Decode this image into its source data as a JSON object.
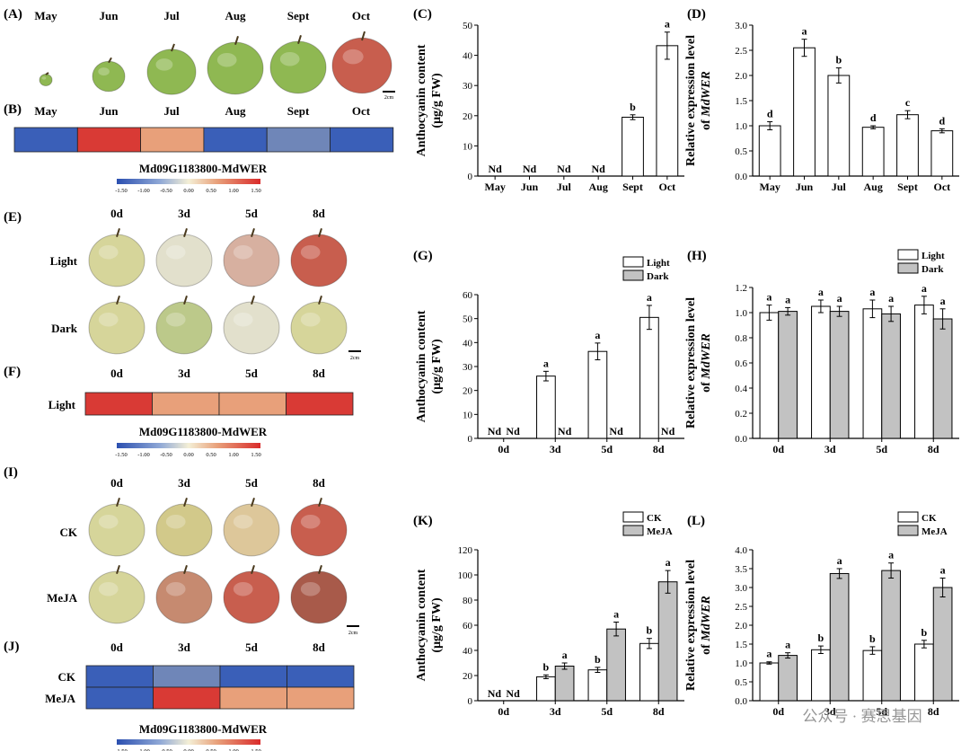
{
  "colors": {
    "heat_low": "#3a5fb8",
    "heat_low2": "#6f86b8",
    "heat_high2": "#e8a07a",
    "heat_high": "#d93a35",
    "bar_white": "#ffffff",
    "bar_gray": "#c2c2c2",
    "apple_green": "#8fb852",
    "apple_yellow": "#d6d59a",
    "apple_red": "#c85e4e",
    "apple_pale": "#e2e0cc"
  },
  "panel_labels": {
    "A": "(A)",
    "B": "(B)",
    "C": "(C)",
    "D": "(D)",
    "E": "(E)",
    "F": "(F)",
    "G": "(G)",
    "H": "(H)",
    "I": "(I)",
    "J": "(J)",
    "K": "(K)",
    "L": "(L)"
  },
  "panel_A": {
    "months": [
      "May",
      "Jun",
      "Jul",
      "Aug",
      "Sept",
      "Oct"
    ],
    "scale": "2cm"
  },
  "panel_B": {
    "months": [
      "May",
      "Jun",
      "Jul",
      "Aug",
      "Sept",
      "Oct"
    ],
    "cells": [
      "low",
      "high",
      "high2",
      "low",
      "low2",
      "low"
    ],
    "gene": "Md09G1183800-MdWER",
    "scale_ticks": [
      "-1.50",
      "-1.00",
      "-0.50",
      "0.00",
      "0.50",
      "1.00",
      "1.50"
    ]
  },
  "panel_E": {
    "days": [
      "0d",
      "3d",
      "5d",
      "8d"
    ],
    "rows": [
      "Light",
      "Dark"
    ],
    "scale": "2cm"
  },
  "panel_F": {
    "days": [
      "0d",
      "3d",
      "5d",
      "8d"
    ],
    "row": "Light",
    "cells": [
      "high",
      "high2",
      "high2",
      "high"
    ],
    "gene": "Md09G1183800-MdWER",
    "scale_ticks": [
      "-1.50",
      "-1.00",
      "-0.50",
      "0.00",
      "0.50",
      "1.00",
      "1.50"
    ]
  },
  "panel_I": {
    "days": [
      "0d",
      "3d",
      "5d",
      "8d"
    ],
    "rows": [
      "CK",
      "MeJA"
    ],
    "scale": "2cm"
  },
  "panel_J": {
    "days": [
      "0d",
      "3d",
      "5d",
      "8d"
    ],
    "rows": [
      "CK",
      "MeJA"
    ],
    "cells": [
      [
        "low",
        "low2",
        "low",
        "low"
      ],
      [
        "low",
        "high",
        "high2",
        "high2"
      ]
    ],
    "gene": "Md09G1183800-MdWER",
    "scale_ticks": [
      "-1.50",
      "-1.00",
      "-0.50",
      "0.00",
      "0.50",
      "1.00",
      "1.50"
    ]
  },
  "watermark": "公众号 · 赛思基因",
  "chart_data": [
    {
      "id": "C",
      "type": "bar",
      "categories": [
        "May",
        "Jun",
        "Jul",
        "Aug",
        "Sept",
        "Oct"
      ],
      "series": [
        {
          "values": [
            0,
            0,
            0,
            0,
            19.5,
            43.2
          ],
          "errors": [
            0,
            0,
            0,
            0,
            0.8,
            4.5
          ],
          "labels": [
            "Nd",
            "Nd",
            "Nd",
            "Nd",
            "b",
            "a"
          ]
        }
      ],
      "ylabel": [
        "Anthocyanin content",
        "(μg/g FW)"
      ],
      "ylim": [
        0,
        50
      ],
      "yticks": [
        0,
        10,
        20,
        30,
        40,
        50
      ],
      "legend": []
    },
    {
      "id": "D",
      "type": "bar",
      "categories": [
        "May",
        "Jun",
        "Jul",
        "Aug",
        "Sept",
        "Oct"
      ],
      "series": [
        {
          "values": [
            1.0,
            2.55,
            2.0,
            0.97,
            1.22,
            0.9
          ],
          "errors": [
            0.08,
            0.17,
            0.15,
            0.03,
            0.08,
            0.04
          ],
          "labels": [
            "d",
            "a",
            "b",
            "d",
            "c",
            "d"
          ]
        }
      ],
      "ylabel": [
        "Relative expression level",
        "of MdWER"
      ],
      "ylim": [
        0,
        3.0
      ],
      "yticks": [
        0,
        0.5,
        1.0,
        1.5,
        2.0,
        2.5,
        3.0
      ],
      "legend": []
    },
    {
      "id": "G",
      "type": "bar",
      "categories": [
        "0d",
        "3d",
        "5d",
        "8d"
      ],
      "series": [
        {
          "name": "Light",
          "values": [
            0,
            26,
            36.3,
            50.5
          ],
          "errors": [
            0,
            2,
            3.5,
            5
          ],
          "labels": [
            "Nd",
            "a",
            "a",
            "a"
          ]
        },
        {
          "name": "Dark",
          "values": [
            0,
            0,
            0,
            0
          ],
          "errors": [
            0,
            0,
            0,
            0
          ],
          "labels": [
            "Nd",
            "Nd",
            "Nd",
            "Nd"
          ]
        }
      ],
      "ylabel": [
        "Anthocyanin content",
        "(μg/g FW)"
      ],
      "ylim": [
        0,
        60
      ],
      "yticks": [
        0,
        10,
        20,
        30,
        40,
        50,
        60
      ],
      "legend": [
        "Light",
        "Dark"
      ]
    },
    {
      "id": "H",
      "type": "bar",
      "categories": [
        "0d",
        "3d",
        "5d",
        "8d"
      ],
      "series": [
        {
          "name": "Light",
          "values": [
            1.0,
            1.05,
            1.03,
            1.06
          ],
          "errors": [
            0.06,
            0.05,
            0.07,
            0.07
          ],
          "labels": [
            "a",
            "a",
            "a",
            "a"
          ]
        },
        {
          "name": "Dark",
          "values": [
            1.01,
            1.01,
            0.99,
            0.95
          ],
          "errors": [
            0.03,
            0.04,
            0.06,
            0.08
          ],
          "labels": [
            "a",
            "a",
            "a",
            "a"
          ]
        }
      ],
      "ylabel": [
        "Relative expression level",
        "of MdWER"
      ],
      "ylim": [
        0,
        1.2
      ],
      "yticks": [
        0,
        0.2,
        0.4,
        0.6,
        0.8,
        1.0,
        1.2
      ],
      "legend": [
        "Light",
        "Dark"
      ]
    },
    {
      "id": "K",
      "type": "bar",
      "categories": [
        "0d",
        "3d",
        "5d",
        "8d"
      ],
      "series": [
        {
          "name": "CK",
          "values": [
            0,
            19,
            24.5,
            45.5
          ],
          "errors": [
            0,
            1.5,
            2,
            4
          ],
          "labels": [
            "Nd",
            "b",
            "b",
            "b"
          ]
        },
        {
          "name": "MeJA",
          "values": [
            0,
            27.5,
            57,
            94.5
          ],
          "errors": [
            0,
            2.5,
            5.5,
            9
          ],
          "labels": [
            "Nd",
            "a",
            "a",
            "a"
          ]
        }
      ],
      "ylabel": [
        "Anthocyanin content",
        "(μg/g FW)"
      ],
      "ylim": [
        0,
        120
      ],
      "yticks": [
        0,
        20,
        40,
        60,
        80,
        100,
        120
      ],
      "legend": [
        "CK",
        "MeJA"
      ]
    },
    {
      "id": "L",
      "type": "bar",
      "categories": [
        "0d",
        "3d",
        "5d",
        "8d"
      ],
      "series": [
        {
          "name": "CK",
          "values": [
            1.0,
            1.35,
            1.33,
            1.5
          ],
          "errors": [
            0.03,
            0.1,
            0.1,
            0.1
          ],
          "labels": [
            "a",
            "b",
            "b",
            "b"
          ]
        },
        {
          "name": "MeJA",
          "values": [
            1.2,
            3.37,
            3.45,
            3.0
          ],
          "errors": [
            0.07,
            0.13,
            0.2,
            0.25
          ],
          "labels": [
            "a",
            "a",
            "a",
            "a"
          ]
        }
      ],
      "ylabel": [
        "Relative expression level",
        "of MdWER"
      ],
      "ylim": [
        0,
        4.0
      ],
      "yticks": [
        0,
        0.5,
        1.0,
        1.5,
        2.0,
        2.5,
        3.0,
        3.5,
        4.0
      ],
      "legend": [
        "CK",
        "MeJA"
      ]
    }
  ]
}
